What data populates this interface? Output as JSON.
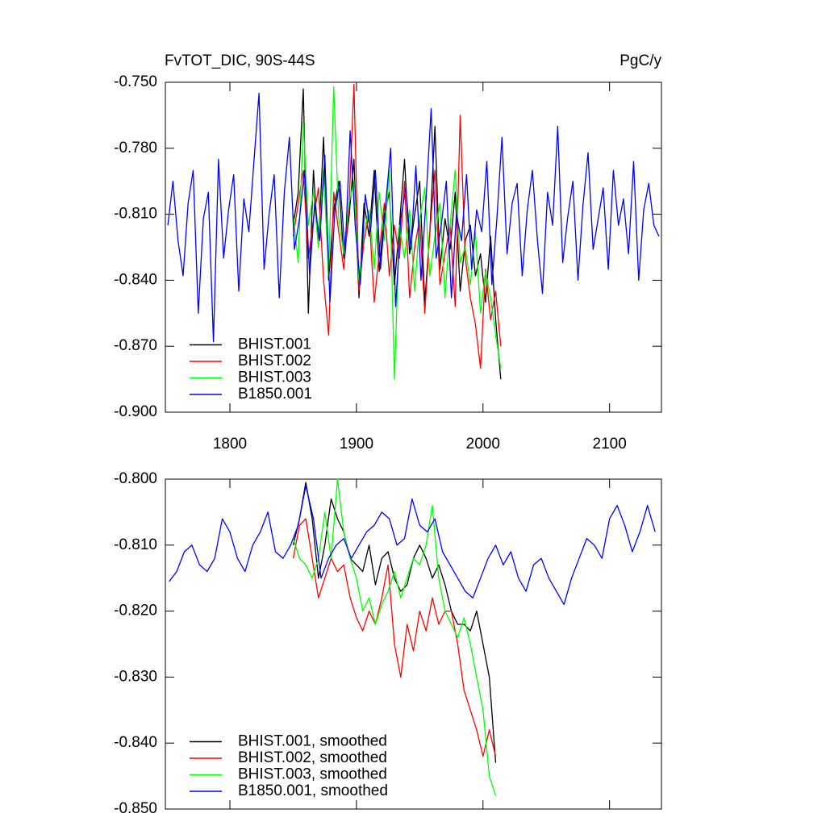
{
  "chart_data": [
    {
      "type": "line",
      "title": "FvTOT_DIC, 90S-44S",
      "units": "PgC/y",
      "xlim": [
        1749,
        2141
      ],
      "xticks": [
        1800,
        1900,
        2000,
        2100
      ],
      "ylim": [
        -0.9,
        -0.75
      ],
      "yticks": [
        {
          "value": -0.9,
          "label": "-0.900"
        },
        {
          "value": -0.87,
          "label": "-0.870"
        },
        {
          "value": -0.84,
          "label": "-0.840"
        },
        {
          "value": -0.81,
          "label": "-0.810"
        },
        {
          "value": -0.78,
          "label": "-0.780"
        },
        {
          "value": -0.75,
          "label": "-0.750"
        }
      ],
      "legend": "lower left",
      "series": [
        {
          "name": "BHIST.001",
          "color": "#000000",
          "x": [
            1850,
            1854,
            1858,
            1862,
            1866,
            1870,
            1874,
            1878,
            1882,
            1886,
            1890,
            1894,
            1898,
            1902,
            1906,
            1910,
            1914,
            1918,
            1922,
            1926,
            1930,
            1934,
            1938,
            1942,
            1946,
            1950,
            1954,
            1958,
            1962,
            1966,
            1970,
            1974,
            1978,
            1982,
            1986,
            1990,
            1994,
            1998,
            2002,
            2006,
            2010,
            2014
          ],
          "values": [
            -0.815,
            -0.8,
            -0.753,
            -0.855,
            -0.79,
            -0.825,
            -0.775,
            -0.84,
            -0.808,
            -0.795,
            -0.83,
            -0.812,
            -0.785,
            -0.848,
            -0.805,
            -0.82,
            -0.79,
            -0.836,
            -0.81,
            -0.8,
            -0.842,
            -0.815,
            -0.785,
            -0.828,
            -0.81,
            -0.795,
            -0.85,
            -0.818,
            -0.77,
            -0.835,
            -0.812,
            -0.826,
            -0.8,
            -0.845,
            -0.822,
            -0.815,
            -0.838,
            -0.828,
            -0.85,
            -0.82,
            -0.858,
            -0.885
          ]
        },
        {
          "name": "BHIST.002",
          "color": "#ff0000",
          "x": [
            1850,
            1854,
            1858,
            1862,
            1866,
            1870,
            1874,
            1878,
            1882,
            1886,
            1890,
            1894,
            1898,
            1902,
            1906,
            1910,
            1914,
            1918,
            1922,
            1926,
            1930,
            1934,
            1938,
            1942,
            1946,
            1950,
            1954,
            1958,
            1962,
            1966,
            1970,
            1974,
            1978,
            1982,
            1986,
            1990,
            1994,
            1998,
            2002,
            2006,
            2010,
            2014
          ],
          "values": [
            -0.82,
            -0.805,
            -0.79,
            -0.83,
            -0.812,
            -0.798,
            -0.84,
            -0.865,
            -0.8,
            -0.818,
            -0.835,
            -0.808,
            -0.751,
            -0.845,
            -0.822,
            -0.81,
            -0.85,
            -0.828,
            -0.805,
            -0.838,
            -0.815,
            -0.83,
            -0.795,
            -0.848,
            -0.825,
            -0.812,
            -0.855,
            -0.818,
            -0.79,
            -0.842,
            -0.828,
            -0.815,
            -0.852,
            -0.765,
            -0.83,
            -0.848,
            -0.86,
            -0.88,
            -0.835,
            -0.858,
            -0.845,
            -0.87
          ]
        },
        {
          "name": "BHIST.003",
          "color": "#00ff00",
          "x": [
            1850,
            1854,
            1858,
            1862,
            1866,
            1870,
            1874,
            1878,
            1882,
            1886,
            1890,
            1894,
            1898,
            1902,
            1906,
            1910,
            1914,
            1918,
            1922,
            1926,
            1930,
            1934,
            1938,
            1942,
            1946,
            1950,
            1954,
            1958,
            1962,
            1966,
            1970,
            1974,
            1978,
            1982,
            1986,
            1990,
            1994,
            1998,
            2002,
            2006,
            2010,
            2014
          ],
          "values": [
            -0.81,
            -0.832,
            -0.768,
            -0.815,
            -0.8,
            -0.825,
            -0.79,
            -0.838,
            -0.752,
            -0.812,
            -0.828,
            -0.805,
            -0.795,
            -0.84,
            -0.818,
            -0.808,
            -0.835,
            -0.8,
            -0.822,
            -0.79,
            -0.885,
            -0.815,
            -0.83,
            -0.808,
            -0.845,
            -0.812,
            -0.798,
            -0.838,
            -0.82,
            -0.805,
            -0.848,
            -0.815,
            -0.79,
            -0.832,
            -0.825,
            -0.842,
            -0.818,
            -0.855,
            -0.836,
            -0.848,
            -0.865,
            -0.88
          ]
        },
        {
          "name": "B1850.001",
          "color": "#0000ff",
          "x": [
            1751,
            1755,
            1759,
            1763,
            1767,
            1771,
            1775,
            1779,
            1783,
            1787,
            1791,
            1795,
            1799,
            1803,
            1807,
            1811,
            1815,
            1819,
            1823,
            1827,
            1831,
            1835,
            1839,
            1843,
            1847,
            1851,
            1855,
            1859,
            1863,
            1867,
            1871,
            1875,
            1879,
            1883,
            1887,
            1891,
            1895,
            1899,
            1903,
            1907,
            1911,
            1915,
            1919,
            1923,
            1927,
            1931,
            1935,
            1939,
            1943,
            1947,
            1951,
            1955,
            1959,
            1963,
            1967,
            1971,
            1975,
            1979,
            1983,
            1987,
            1991,
            1995,
            1999,
            2003,
            2007,
            2011,
            2015,
            2019,
            2023,
            2027,
            2031,
            2035,
            2039,
            2043,
            2047,
            2051,
            2055,
            2059,
            2063,
            2067,
            2071,
            2075,
            2079,
            2083,
            2087,
            2091,
            2095,
            2099,
            2103,
            2107,
            2111,
            2115,
            2119,
            2123,
            2127,
            2131,
            2135,
            2139
          ],
          "values": [
            -0.815,
            -0.795,
            -0.822,
            -0.838,
            -0.805,
            -0.79,
            -0.855,
            -0.812,
            -0.8,
            -0.868,
            -0.785,
            -0.83,
            -0.808,
            -0.792,
            -0.845,
            -0.803,
            -0.818,
            -0.786,
            -0.755,
            -0.835,
            -0.81,
            -0.792,
            -0.848,
            -0.8,
            -0.775,
            -0.826,
            -0.812,
            -0.79,
            -0.838,
            -0.805,
            -0.822,
            -0.783,
            -0.85,
            -0.808,
            -0.795,
            -0.828,
            -0.772,
            -0.815,
            -0.842,
            -0.801,
            -0.818,
            -0.79,
            -0.835,
            -0.806,
            -0.78,
            -0.852,
            -0.812,
            -0.798,
            -0.826,
            -0.788,
            -0.84,
            -0.803,
            -0.762,
            -0.83,
            -0.815,
            -0.795,
            -0.848,
            -0.81,
            -0.822,
            -0.792,
            -0.835,
            -0.808,
            -0.818,
            -0.786,
            -0.842,
            -0.812,
            -0.775,
            -0.828,
            -0.805,
            -0.796,
            -0.838,
            -0.808,
            -0.79,
            -0.822,
            -0.846,
            -0.8,
            -0.815,
            -0.77,
            -0.832,
            -0.811,
            -0.795,
            -0.84,
            -0.806,
            -0.782,
            -0.826,
            -0.812,
            -0.798,
            -0.835,
            -0.79,
            -0.815,
            -0.803,
            -0.828,
            -0.786,
            -0.84,
            -0.808,
            -0.796,
            -0.815,
            -0.82
          ]
        }
      ]
    },
    {
      "type": "line",
      "xlim": [
        1749,
        2141
      ],
      "ylim": [
        -0.85,
        -0.8
      ],
      "yticks": [
        {
          "value": -0.85,
          "label": "-0.850"
        },
        {
          "value": -0.84,
          "label": "-0.840"
        },
        {
          "value": -0.83,
          "label": "-0.830"
        },
        {
          "value": -0.82,
          "label": "-0.820"
        },
        {
          "value": -0.81,
          "label": "-0.810"
        },
        {
          "value": -0.8,
          "label": "-0.800"
        }
      ],
      "legend": "lower left",
      "series": [
        {
          "name": "BHIST.001, smoothed",
          "color": "#000000",
          "x": [
            1850,
            1855,
            1860,
            1865,
            1870,
            1875,
            1880,
            1885,
            1890,
            1895,
            1900,
            1905,
            1910,
            1915,
            1920,
            1925,
            1930,
            1935,
            1940,
            1945,
            1950,
            1955,
            1960,
            1965,
            1970,
            1975,
            1980,
            1985,
            1990,
            1995,
            2000,
            2005,
            2010
          ],
          "values": [
            -0.81,
            -0.806,
            -0.8005,
            -0.806,
            -0.815,
            -0.81,
            -0.803,
            -0.806,
            -0.808,
            -0.812,
            -0.813,
            -0.814,
            -0.81,
            -0.816,
            -0.812,
            -0.811,
            -0.815,
            -0.817,
            -0.816,
            -0.812,
            -0.81,
            -0.812,
            -0.815,
            -0.813,
            -0.816,
            -0.82,
            -0.822,
            -0.822,
            -0.823,
            -0.82,
            -0.825,
            -0.83,
            -0.843
          ]
        },
        {
          "name": "BHIST.002, smoothed",
          "color": "#ff0000",
          "x": [
            1850,
            1855,
            1860,
            1865,
            1870,
            1875,
            1880,
            1885,
            1890,
            1895,
            1900,
            1905,
            1910,
            1915,
            1920,
            1925,
            1930,
            1935,
            1940,
            1945,
            1950,
            1955,
            1960,
            1965,
            1970,
            1975,
            1980,
            1985,
            1990,
            1995,
            2000,
            2005,
            2010
          ],
          "values": [
            -0.812,
            -0.807,
            -0.806,
            -0.812,
            -0.818,
            -0.815,
            -0.812,
            -0.814,
            -0.813,
            -0.818,
            -0.821,
            -0.823,
            -0.82,
            -0.822,
            -0.818,
            -0.813,
            -0.825,
            -0.83,
            -0.822,
            -0.826,
            -0.82,
            -0.823,
            -0.818,
            -0.822,
            -0.82,
            -0.82,
            -0.825,
            -0.832,
            -0.835,
            -0.838,
            -0.842,
            -0.838,
            -0.842
          ]
        },
        {
          "name": "BHIST.003, smoothed",
          "color": "#00ff00",
          "x": [
            1850,
            1855,
            1860,
            1865,
            1870,
            1875,
            1880,
            1885,
            1890,
            1895,
            1900,
            1905,
            1910,
            1915,
            1920,
            1925,
            1930,
            1935,
            1940,
            1945,
            1950,
            1955,
            1960,
            1965,
            1970,
            1975,
            1980,
            1985,
            1990,
            1995,
            2000,
            2005,
            2010
          ],
          "values": [
            -0.809,
            -0.812,
            -0.813,
            -0.815,
            -0.812,
            -0.805,
            -0.812,
            -0.8,
            -0.808,
            -0.812,
            -0.815,
            -0.82,
            -0.818,
            -0.822,
            -0.819,
            -0.817,
            -0.814,
            -0.818,
            -0.815,
            -0.812,
            -0.813,
            -0.81,
            -0.804,
            -0.815,
            -0.82,
            -0.822,
            -0.824,
            -0.821,
            -0.825,
            -0.83,
            -0.835,
            -0.845,
            -0.848
          ]
        },
        {
          "name": "B1850.001, smoothed",
          "color": "#0000ff",
          "x": [
            1752,
            1758,
            1764,
            1770,
            1776,
            1782,
            1788,
            1794,
            1800,
            1806,
            1812,
            1818,
            1824,
            1830,
            1836,
            1842,
            1848,
            1854,
            1860,
            1866,
            1872,
            1878,
            1884,
            1890,
            1896,
            1902,
            1908,
            1914,
            1920,
            1926,
            1932,
            1938,
            1944,
            1950,
            1956,
            1962,
            1968,
            1974,
            1980,
            1986,
            1992,
            1998,
            2004,
            2010,
            2016,
            2022,
            2028,
            2034,
            2040,
            2046,
            2052,
            2058,
            2064,
            2070,
            2076,
            2082,
            2088,
            2094,
            2100,
            2106,
            2112,
            2118,
            2124,
            2130,
            2136
          ],
          "values": [
            -0.8155,
            -0.814,
            -0.811,
            -0.81,
            -0.813,
            -0.814,
            -0.812,
            -0.806,
            -0.808,
            -0.812,
            -0.814,
            -0.81,
            -0.808,
            -0.805,
            -0.811,
            -0.812,
            -0.81,
            -0.807,
            -0.801,
            -0.806,
            -0.815,
            -0.812,
            -0.81,
            -0.809,
            -0.812,
            -0.81,
            -0.808,
            -0.807,
            -0.805,
            -0.806,
            -0.81,
            -0.809,
            -0.803,
            -0.807,
            -0.808,
            -0.806,
            -0.811,
            -0.813,
            -0.815,
            -0.817,
            -0.818,
            -0.815,
            -0.812,
            -0.81,
            -0.813,
            -0.811,
            -0.815,
            -0.817,
            -0.813,
            -0.812,
            -0.815,
            -0.817,
            -0.819,
            -0.815,
            -0.812,
            -0.809,
            -0.81,
            -0.812,
            -0.806,
            -0.804,
            -0.807,
            -0.811,
            -0.808,
            -0.804,
            -0.808
          ]
        }
      ]
    }
  ]
}
